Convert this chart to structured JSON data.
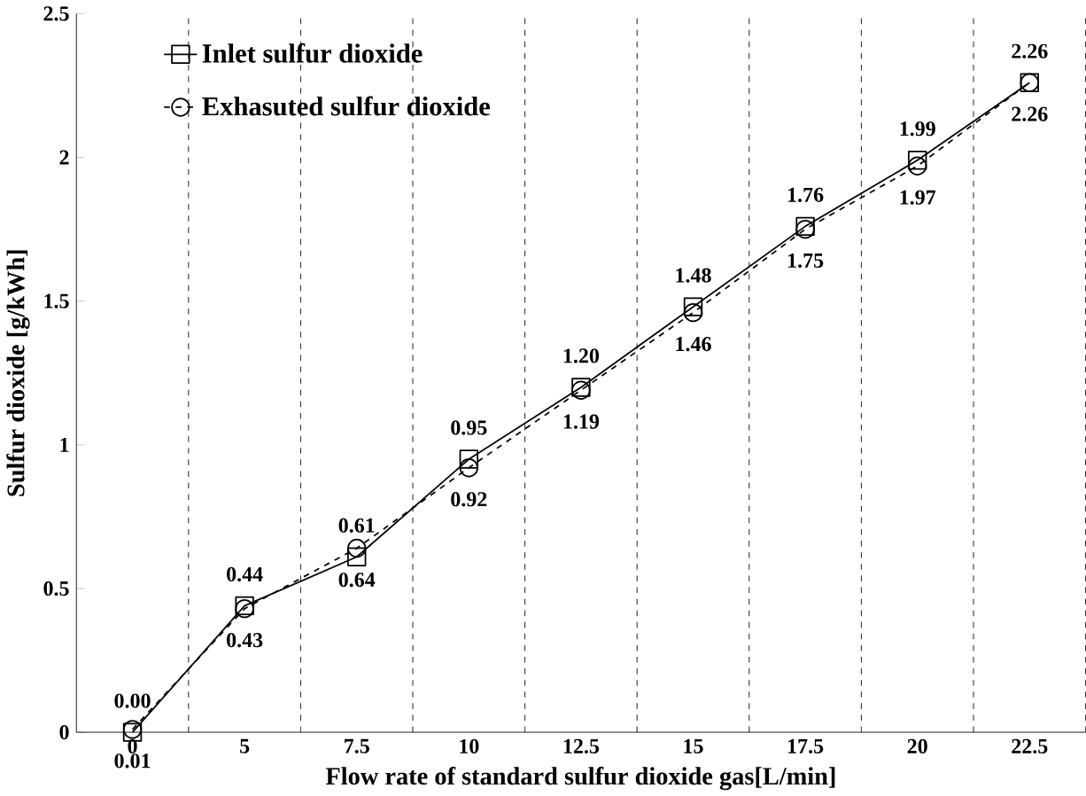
{
  "chart_data": {
    "type": "line",
    "xlabel": "Flow rate of standard sulfur dioxide gas[L/min]",
    "ylabel": "Sulfur dioxide [g/kWh]",
    "categories": [
      "0",
      "5",
      "7.5",
      "10",
      "12.5",
      "15",
      "17.5",
      "20",
      "22.5"
    ],
    "series": [
      {
        "name": "Inlet sulfur dioxide",
        "color": "#000000",
        "marker": "square",
        "line_style": "solid",
        "values": [
          0.0,
          0.44,
          0.61,
          0.95,
          1.2,
          1.48,
          1.76,
          1.99,
          2.26
        ],
        "value_labels": [
          "0.00",
          "0.44",
          "0.61",
          "0.95",
          "1.20",
          "1.48",
          "1.76",
          "1.99",
          "2.26"
        ]
      },
      {
        "name": "Exhasuted sulfur dioxide",
        "color": "#000000",
        "marker": "circle",
        "line_style": "dashed",
        "values": [
          0.01,
          0.43,
          0.64,
          0.92,
          1.19,
          1.46,
          1.75,
          1.97,
          2.26
        ],
        "value_labels": [
          "0.01",
          "0.43",
          "0.64",
          "0.92",
          "1.19",
          "1.46",
          "1.75",
          "1.97",
          "2.26"
        ]
      }
    ],
    "ylim": [
      0,
      2.5
    ],
    "yticks": [
      0,
      0.5,
      1,
      1.5,
      2,
      2.5
    ],
    "grid": "x",
    "legend": "top left"
  }
}
